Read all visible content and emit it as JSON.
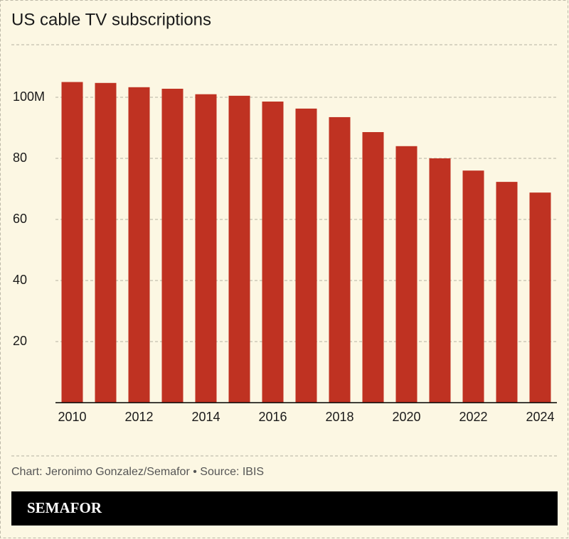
{
  "chart_data": {
    "type": "bar",
    "title": "US cable TV subscriptions",
    "categories": [
      "2010",
      null,
      "2012",
      null,
      "2014",
      null,
      "2016",
      null,
      "2018",
      null,
      "2020",
      null,
      "2022",
      null,
      "2024"
    ],
    "values": [
      105,
      104.7,
      103.3,
      102.8,
      101,
      100.5,
      98.6,
      96.3,
      93.5,
      88.6,
      84,
      80,
      76,
      72.3,
      68.8
    ],
    "color": "#bf3222",
    "ylim": [
      0,
      110
    ],
    "yticks": [
      20,
      40,
      60,
      80,
      {
        "value": 100,
        "label": "100M"
      }
    ],
    "grid": true
  },
  "footer": {
    "credit": "Chart: Jeronimo Gonzalez/Semafor • Source: IBIS",
    "logo": "SEMAFOR"
  }
}
